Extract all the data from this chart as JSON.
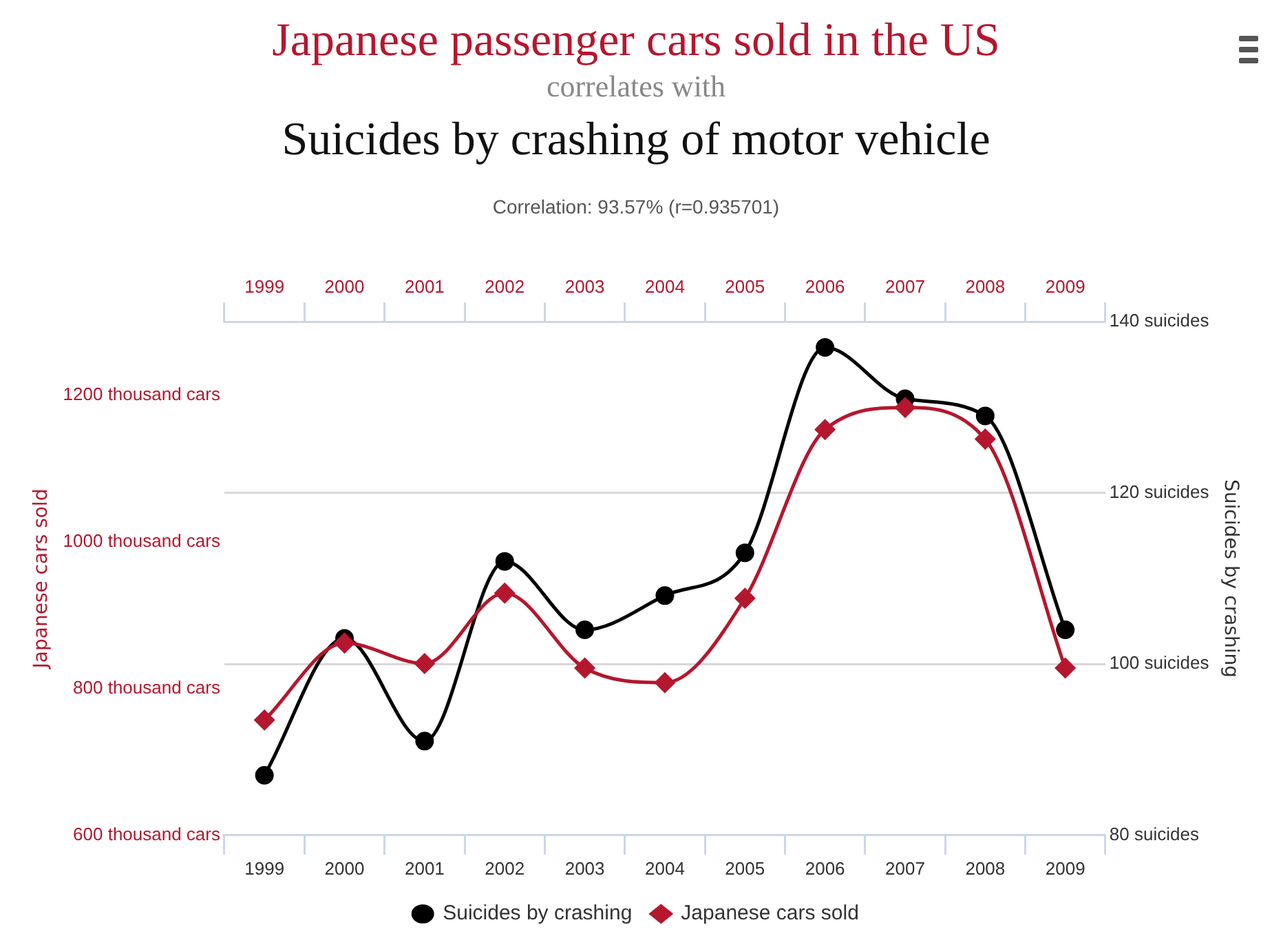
{
  "chart_data": {
    "type": "line",
    "title": "Japanese passenger cars sold in the US",
    "subtitle": "correlates with",
    "annotations": [
      "Suicides by crashing of motor vehicle",
      "Correlation: 93.57% (r=0.935701)"
    ],
    "categories": [
      "1999",
      "2000",
      "2001",
      "2002",
      "2003",
      "2004",
      "2005",
      "2006",
      "2007",
      "2008",
      "2009"
    ],
    "series": [
      {
        "name": "Suicides by crashing",
        "color": "#000000",
        "axis": "y2",
        "marker": "circle",
        "values": [
          87,
          103,
          91,
          112,
          104,
          108,
          113,
          137,
          131,
          129,
          104
        ]
      },
      {
        "name": "Japanese cars sold",
        "color": "#b5172e",
        "marker": "diamond",
        "values": [
          757,
          862,
          834,
          930,
          828,
          808,
          923,
          1153,
          1183,
          1140,
          828
        ]
      }
    ],
    "ylabel": "Japanese cars sold",
    "y2label": "Suicides by crashing",
    "ylim": [
      600,
      1300
    ],
    "yticks": [
      {
        "value": 600,
        "label": "600 thousand cars"
      },
      {
        "value": 800,
        "label": "800 thousand cars"
      },
      {
        "value": 1000,
        "label": "1000 thousand cars"
      },
      {
        "value": 1200,
        "label": "1200 thousand cars"
      }
    ],
    "y2lim": [
      80,
      140
    ],
    "y2ticks": [
      {
        "value": 80,
        "label": "80 suicides"
      },
      {
        "value": 100,
        "label": "100 suicides"
      },
      {
        "value": 120,
        "label": "120 suicides"
      },
      {
        "value": 140,
        "label": "140 suicides"
      }
    ],
    "grid": "y",
    "legend": "bottom"
  }
}
